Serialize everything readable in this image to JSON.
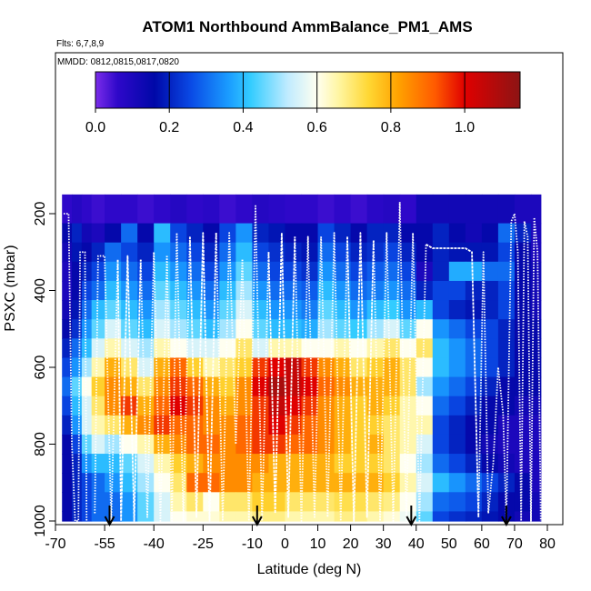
{
  "chart_data": {
    "type": "heatmap",
    "title": "ATOM1 Northbound AmmBalance_PM1_AMS",
    "annotations": {
      "flights": "Flts: 6,7,8,9",
      "dates": "MMDD: 0812,0815,0817,0820"
    },
    "xlabel": "Latitude (deg N)",
    "ylabel": "PSXC (mbar)",
    "xlim": [
      -70,
      80
    ],
    "ylim": [
      1000,
      150
    ],
    "x_ticks": [
      -70,
      -55,
      -40,
      -25,
      -10,
      0,
      10,
      20,
      30,
      40,
      50,
      60,
      70,
      80
    ],
    "y_ticks": [
      200,
      400,
      600,
      800,
      1000
    ],
    "colorbar": {
      "range": [
        0.0,
        1.15
      ],
      "ticks": [
        0.0,
        0.2,
        0.4,
        0.6,
        0.8,
        1.0
      ],
      "tick_labels": [
        "0.0",
        "0.2",
        "0.4",
        "0.6",
        "0.8",
        "1.0"
      ],
      "stops": [
        {
          "v": 0.0,
          "c": "#7B2CEA"
        },
        {
          "v": 0.06,
          "c": "#2E08C9"
        },
        {
          "v": 0.16,
          "c": "#0008A8"
        },
        {
          "v": 0.26,
          "c": "#0A4BE6"
        },
        {
          "v": 0.36,
          "c": "#1A9CFF"
        },
        {
          "v": 0.42,
          "c": "#33CCFF"
        },
        {
          "v": 0.52,
          "c": "#BFEBFF"
        },
        {
          "v": 0.6,
          "c": "#FFFFF0"
        },
        {
          "v": 0.66,
          "c": "#FFF5A0"
        },
        {
          "v": 0.74,
          "c": "#FFD733"
        },
        {
          "v": 0.82,
          "c": "#FFA200"
        },
        {
          "v": 0.92,
          "c": "#FF5A00"
        },
        {
          "v": 1.0,
          "c": "#E00000"
        },
        {
          "v": 1.15,
          "c": "#8C1414"
        }
      ]
    },
    "grid": {
      "lat_edges": [
        -68,
        -65,
        -62,
        -59,
        -55,
        -50,
        -45,
        -40,
        -35,
        -30,
        -25,
        -20,
        -15,
        -10,
        -5,
        0,
        5,
        10,
        15,
        20,
        25,
        30,
        35,
        40,
        45,
        50,
        55,
        60,
        65,
        70,
        75,
        78
      ],
      "pressure_levels": [
        200,
        250,
        300,
        350,
        400,
        450,
        500,
        550,
        600,
        650,
        700,
        750,
        800,
        850,
        900,
        950,
        1000
      ],
      "values": [
        [
          0.06,
          0.08,
          0.06,
          0.05,
          0.06,
          0.06,
          0.05,
          0.06,
          0.08,
          0.06,
          0.07,
          0.05,
          0.06,
          0.08,
          0.07,
          0.06,
          0.06,
          0.05,
          0.06,
          0.05,
          0.07,
          0.08,
          0.06,
          0.12,
          0.12,
          0.12,
          0.12,
          0.12,
          0.12,
          0.1,
          0.1
        ],
        [
          0.15,
          0.2,
          0.12,
          0.1,
          0.15,
          0.3,
          0.15,
          0.4,
          0.25,
          0.2,
          0.15,
          0.25,
          0.35,
          0.2,
          0.18,
          0.15,
          0.15,
          0.25,
          0.2,
          0.15,
          0.2,
          0.2,
          0.15,
          0.15,
          0.2,
          0.15,
          0.12,
          0.15,
          0.3,
          0.2,
          0.1
        ],
        [
          0.12,
          0.18,
          0.15,
          0.2,
          0.3,
          0.25,
          0.2,
          0.35,
          0.3,
          0.25,
          0.2,
          0.3,
          0.4,
          0.25,
          0.22,
          0.2,
          0.18,
          0.3,
          0.25,
          0.2,
          0.22,
          0.25,
          0.2,
          0.15,
          0.2,
          0.18,
          0.18,
          0.18,
          0.25,
          0.15,
          0.1
        ],
        [
          0.1,
          0.15,
          0.2,
          0.25,
          0.35,
          0.3,
          0.25,
          0.4,
          0.35,
          0.3,
          0.25,
          0.35,
          0.45,
          0.3,
          0.25,
          0.25,
          0.22,
          0.35,
          0.3,
          0.25,
          0.28,
          0.3,
          0.25,
          0.1,
          0.2,
          0.38,
          0.38,
          0.3,
          0.3,
          0.15,
          0.12
        ],
        [
          0.1,
          0.15,
          0.25,
          0.3,
          0.4,
          0.35,
          0.3,
          0.45,
          0.4,
          0.35,
          0.3,
          0.4,
          0.5,
          0.35,
          0.3,
          0.3,
          0.28,
          0.4,
          0.35,
          0.3,
          0.32,
          0.35,
          0.3,
          0.2,
          0.25,
          0.25,
          0.2,
          0.2,
          0.25,
          0.15,
          0.12
        ],
        [
          0.12,
          0.18,
          0.3,
          0.4,
          0.45,
          0.4,
          0.35,
          0.5,
          0.45,
          0.4,
          0.35,
          0.45,
          0.55,
          0.4,
          0.35,
          0.35,
          0.32,
          0.45,
          0.4,
          0.35,
          0.4,
          0.42,
          0.35,
          0.4,
          0.25,
          0.2,
          0.18,
          0.2,
          0.25,
          0.15,
          0.12
        ],
        [
          0.15,
          0.22,
          0.35,
          0.45,
          0.55,
          0.45,
          0.4,
          0.55,
          0.5,
          0.45,
          0.4,
          0.5,
          0.6,
          0.45,
          0.4,
          0.4,
          0.38,
          0.5,
          0.45,
          0.42,
          0.5,
          0.55,
          0.45,
          0.6,
          0.35,
          0.3,
          0.25,
          0.25,
          0.2,
          0.15,
          0.15
        ],
        [
          0.2,
          0.3,
          0.4,
          0.55,
          0.65,
          0.55,
          0.5,
          0.65,
          0.6,
          0.55,
          0.55,
          0.6,
          0.7,
          0.55,
          0.65,
          0.65,
          0.6,
          0.6,
          0.65,
          0.6,
          0.65,
          0.7,
          0.6,
          0.7,
          0.4,
          0.35,
          0.3,
          0.25,
          0.2,
          0.15,
          0.15
        ],
        [
          0.25,
          0.35,
          0.5,
          0.65,
          0.8,
          0.7,
          0.55,
          0.8,
          0.9,
          0.75,
          0.65,
          0.7,
          0.75,
          0.95,
          1.0,
          1.05,
          0.95,
          0.85,
          0.8,
          0.7,
          0.75,
          0.8,
          0.7,
          0.6,
          0.4,
          0.35,
          0.3,
          0.25,
          0.2,
          0.15,
          0.15
        ],
        [
          0.3,
          0.45,
          0.6,
          0.75,
          0.85,
          0.8,
          0.7,
          0.85,
          0.95,
          0.9,
          0.8,
          0.75,
          0.85,
          1.0,
          1.1,
          1.05,
          1.0,
          0.9,
          0.85,
          0.8,
          0.8,
          0.8,
          0.7,
          0.5,
          0.35,
          0.3,
          0.25,
          0.2,
          0.15,
          0.15,
          0.15
        ],
        [
          0.25,
          0.4,
          0.55,
          0.7,
          0.85,
          0.95,
          0.8,
          0.9,
          1.0,
          0.95,
          0.85,
          0.8,
          0.85,
          0.95,
          1.05,
          1.0,
          0.95,
          0.85,
          0.8,
          0.75,
          0.8,
          0.75,
          0.65,
          0.6,
          0.3,
          0.25,
          0.2,
          0.15,
          0.15,
          0.12,
          0.12
        ],
        [
          0.2,
          0.35,
          0.55,
          0.65,
          0.7,
          0.8,
          0.85,
          0.95,
          0.9,
          0.9,
          0.85,
          0.85,
          0.9,
          0.95,
          1.0,
          0.95,
          0.9,
          0.85,
          0.8,
          0.75,
          0.75,
          0.7,
          0.65,
          0.65,
          0.25,
          0.2,
          0.15,
          0.15,
          0.1,
          0.1,
          0.1
        ],
        [
          0.15,
          0.25,
          0.45,
          0.55,
          0.5,
          0.6,
          0.65,
          0.8,
          0.85,
          0.9,
          0.9,
          0.85,
          0.9,
          0.95,
          0.95,
          0.9,
          0.9,
          0.85,
          0.8,
          0.75,
          0.8,
          0.7,
          0.65,
          0.55,
          0.25,
          0.2,
          0.15,
          0.12,
          0.1,
          0.1,
          0.1
        ],
        [
          0.15,
          0.2,
          0.35,
          0.4,
          0.4,
          0.45,
          0.55,
          0.65,
          0.75,
          0.8,
          0.85,
          0.85,
          0.85,
          0.85,
          0.8,
          0.8,
          0.8,
          0.8,
          0.75,
          0.75,
          0.75,
          0.7,
          0.6,
          0.5,
          0.3,
          0.25,
          0.2,
          0.15,
          0.12,
          0.1,
          0.1
        ],
        [
          0.15,
          0.2,
          0.25,
          0.3,
          0.35,
          0.4,
          0.5,
          0.6,
          0.7,
          0.9,
          0.9,
          0.85,
          0.85,
          0.8,
          0.8,
          0.8,
          0.8,
          0.8,
          0.8,
          0.8,
          0.8,
          0.75,
          0.65,
          0.55,
          0.4,
          0.35,
          0.3,
          0.25,
          0.2,
          0.15,
          0.1
        ],
        [
          0.15,
          0.2,
          0.25,
          0.3,
          0.3,
          0.35,
          0.45,
          0.55,
          0.65,
          0.7,
          0.6,
          0.7,
          0.7,
          0.75,
          0.75,
          0.7,
          0.7,
          0.7,
          0.72,
          0.72,
          0.7,
          0.68,
          0.6,
          0.5,
          0.3,
          0.28,
          0.25,
          0.2,
          0.15,
          0.15,
          0.12
        ],
        [
          0.15,
          0.2,
          0.25,
          0.3,
          0.3,
          0.35,
          0.45,
          0.55,
          0.6,
          0.62,
          0.62,
          0.65,
          0.65,
          0.68,
          0.68,
          0.65,
          0.65,
          0.65,
          0.68,
          0.68,
          0.65,
          0.62,
          0.58,
          0.45,
          0.25,
          0.22,
          0.2,
          0.18,
          0.15,
          0.12,
          0.12
        ]
      ]
    },
    "flight_profiles": [
      {
        "lat": [
          -67.5,
          -66,
          -65,
          -64,
          -63,
          -62.5,
          -61,
          -60.5
        ],
        "p": [
          200,
          200,
          800,
          1000,
          1000,
          300,
          300,
          1000
        ]
      },
      {
        "lat": [
          -58,
          -57,
          -55,
          -53,
          -51
        ],
        "p": [
          980,
          310,
          310,
          1000,
          320
        ]
      },
      {
        "lat": [
          -51,
          -50,
          -48,
          -46,
          -44
        ],
        "p": [
          320,
          1000,
          310,
          1000,
          320
        ]
      },
      {
        "lat": [
          -44,
          -42,
          -40,
          -38,
          -36
        ],
        "p": [
          320,
          990,
          300,
          1000,
          310
        ]
      },
      {
        "lat": [
          -36,
          -34.5,
          -33,
          -31,
          -29
        ],
        "p": [
          310,
          1000,
          250,
          1000,
          260
        ]
      },
      {
        "lat": [
          -29,
          -27,
          -25,
          -23,
          -21
        ],
        "p": [
          260,
          990,
          250,
          1000,
          250
        ]
      },
      {
        "lat": [
          -21,
          -19,
          -17,
          -15,
          -13
        ],
        "p": [
          250,
          1000,
          250,
          800,
          320
        ]
      },
      {
        "lat": [
          -13,
          -11,
          -9,
          -7,
          -5
        ],
        "p": [
          320,
          1000,
          180,
          1000,
          300
        ]
      },
      {
        "lat": [
          -5,
          -3,
          -1,
          1,
          3
        ],
        "p": [
          300,
          980,
          250,
          990,
          260
        ]
      },
      {
        "lat": [
          3,
          5,
          7,
          9,
          11
        ],
        "p": [
          260,
          1000,
          260,
          990,
          260
        ]
      },
      {
        "lat": [
          11,
          13,
          15,
          17,
          19
        ],
        "p": [
          260,
          990,
          250,
          1000,
          260
        ]
      },
      {
        "lat": [
          19,
          21,
          23,
          25,
          27
        ],
        "p": [
          260,
          1000,
          250,
          990,
          270
        ]
      },
      {
        "lat": [
          27,
          29,
          31,
          33,
          35
        ],
        "p": [
          270,
          1000,
          250,
          1000,
          170
        ]
      },
      {
        "lat": [
          35,
          37,
          39,
          41,
          43
        ],
        "p": [
          170,
          1000,
          250,
          1000,
          280
        ]
      },
      {
        "lat": [
          43,
          45,
          50,
          55,
          57,
          59
        ],
        "p": [
          280,
          290,
          290,
          290,
          300,
          990
        ]
      },
      {
        "lat": [
          59,
          60.5,
          62,
          63.5,
          65,
          66.5,
          67.5
        ],
        "p": [
          990,
          300,
          980,
          850,
          600,
          720,
          1000
        ]
      },
      {
        "lat": [
          67.5,
          69,
          70,
          71,
          72,
          73,
          74,
          75,
          76,
          77,
          78
        ],
        "p": [
          1000,
          220,
          200,
          300,
          1000,
          220,
          260,
          1000,
          210,
          300,
          1000
        ]
      }
    ],
    "airport_arrows_lat": [
      -53.5,
      -8.5,
      38.5,
      67.5
    ]
  }
}
